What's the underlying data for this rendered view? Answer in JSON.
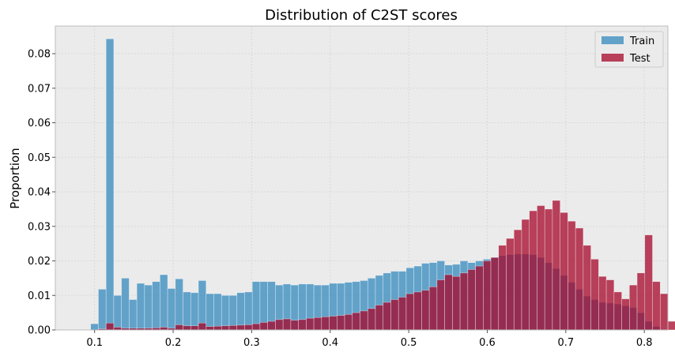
{
  "chart_data": {
    "type": "bar",
    "title": "Distribution of C2ST scores",
    "xlabel": "",
    "ylabel": "Proportion",
    "xlim": [
      0.05,
      0.83
    ],
    "ylim": [
      0,
      0.088
    ],
    "grid": true,
    "legend_position": "top-right",
    "bin_start": 0.095,
    "bin_width": 0.0098,
    "x_ticks": [
      "0.1",
      "0.2",
      "0.3",
      "0.4",
      "0.5",
      "0.6",
      "0.7",
      "0.8"
    ],
    "y_ticks": [
      "0.00",
      "0.01",
      "0.02",
      "0.03",
      "0.04",
      "0.05",
      "0.06",
      "0.07",
      "0.08"
    ],
    "series": [
      {
        "name": "Train",
        "color": "#348ABD",
        "values": [
          0.0018,
          0.0118,
          0.0843,
          0.01,
          0.015,
          0.0088,
          0.0135,
          0.013,
          0.014,
          0.016,
          0.012,
          0.0148,
          0.011,
          0.0108,
          0.0143,
          0.0105,
          0.0105,
          0.01,
          0.01,
          0.0108,
          0.011,
          0.014,
          0.014,
          0.014,
          0.013,
          0.0133,
          0.013,
          0.0133,
          0.0133,
          0.013,
          0.013,
          0.0135,
          0.0135,
          0.0138,
          0.014,
          0.0143,
          0.015,
          0.0158,
          0.0165,
          0.017,
          0.017,
          0.018,
          0.0185,
          0.0193,
          0.0195,
          0.02,
          0.0188,
          0.019,
          0.02,
          0.0195,
          0.02,
          0.0205,
          0.021,
          0.0215,
          0.0218,
          0.022,
          0.022,
          0.0218,
          0.021,
          0.0195,
          0.0178,
          0.0158,
          0.0138,
          0.0118,
          0.0098,
          0.0088,
          0.008,
          0.0078,
          0.0075,
          0.007,
          0.0065,
          0.005,
          0.0025,
          0.001,
          0,
          0,
          0
        ]
      },
      {
        "name": "Test",
        "color": "#A60628",
        "values": [
          0,
          0.0003,
          0.002,
          0.0008,
          0.0005,
          0.0005,
          0.0005,
          0.0005,
          0.0006,
          0.0008,
          0.0005,
          0.0015,
          0.0012,
          0.0012,
          0.002,
          0.001,
          0.0011,
          0.0012,
          0.0013,
          0.0014,
          0.0015,
          0.0018,
          0.0022,
          0.0025,
          0.003,
          0.0032,
          0.0028,
          0.003,
          0.0034,
          0.0036,
          0.0038,
          0.004,
          0.0042,
          0.0045,
          0.005,
          0.0055,
          0.0062,
          0.0072,
          0.008,
          0.0088,
          0.0095,
          0.0105,
          0.011,
          0.0115,
          0.0125,
          0.0145,
          0.016,
          0.0155,
          0.0165,
          0.0175,
          0.0185,
          0.02,
          0.021,
          0.0245,
          0.0265,
          0.029,
          0.032,
          0.0345,
          0.036,
          0.035,
          0.0375,
          0.034,
          0.0315,
          0.0295,
          0.0245,
          0.0205,
          0.0155,
          0.0145,
          0.011,
          0.009,
          0.013,
          0.0165,
          0.0275,
          0.014,
          0.0105,
          0.0025,
          0.0003
        ]
      }
    ]
  }
}
